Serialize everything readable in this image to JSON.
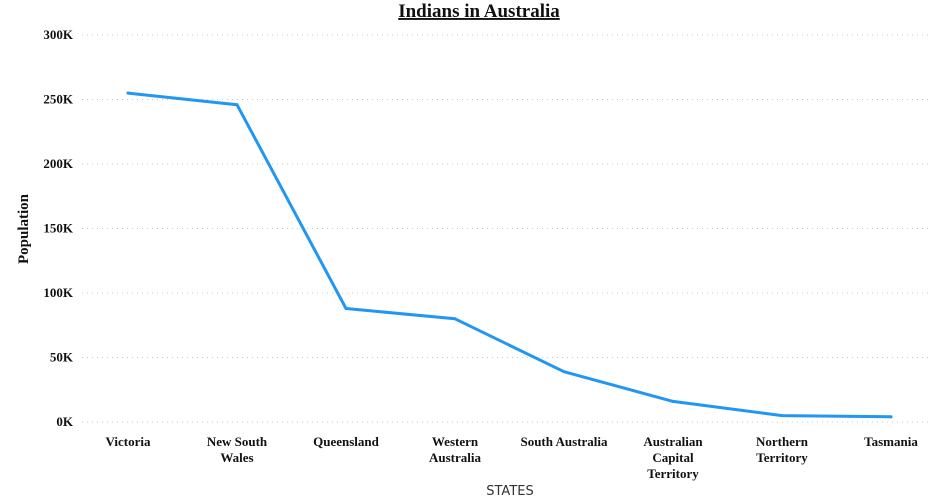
{
  "chart_data": {
    "type": "line",
    "title": "Indians in Australia",
    "xlabel": "STATES",
    "ylabel": "Population",
    "categories": [
      "Victoria",
      "New South Wales",
      "Queensland",
      "Western Australia",
      "South Australia",
      "Australian Capital Territory",
      "Northern Territory",
      "Tasmania"
    ],
    "category_labels": [
      [
        "Victoria"
      ],
      [
        "New South",
        "Wales"
      ],
      [
        "Queensland"
      ],
      [
        "Western",
        "Australia"
      ],
      [
        "South Australia"
      ],
      [
        "Australian",
        "Capital",
        "Territory"
      ],
      [
        "Northern",
        "Territory"
      ],
      [
        "Tasmania"
      ]
    ],
    "values": [
      255000,
      246000,
      88000,
      80000,
      39000,
      16000,
      5000,
      4000
    ],
    "ylim": [
      0,
      300000
    ],
    "yticks": [
      0,
      50000,
      100000,
      150000,
      200000,
      250000,
      300000
    ],
    "ytick_labels": [
      "0K",
      "50K",
      "100K",
      "150K",
      "200K",
      "250K",
      "300K"
    ],
    "grid": true,
    "line_color": "#2196F3"
  }
}
